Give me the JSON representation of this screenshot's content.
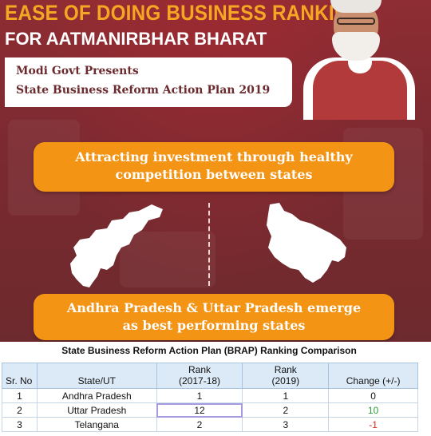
{
  "header": {
    "title_line1": "EASE OF DOING BUSINESS RANKING",
    "title_line2": "FOR AATMANIRBHAR BHARAT",
    "subtitle_line1": "Modi Govt Presents",
    "subtitle_line2": "State Business Reform Action Plan 2019"
  },
  "banners": {
    "top_line1": "Attracting investment through healthy",
    "top_line2": "competition between states",
    "bottom_line1": "Andhra Pradesh & Uttar Pradesh emerge",
    "bottom_line2": "as best performing states"
  },
  "maps": [
    {
      "icon": "andhra-pradesh-map-icon"
    },
    {
      "icon": "uttar-pradesh-map-icon"
    }
  ],
  "colors": {
    "accent_orange": "#f39415",
    "title_orange": "#f5a623",
    "background_maroon": "#7a2a30",
    "positive": "#2e9a3a",
    "negative": "#d9261c"
  },
  "table": {
    "title": "State Business Reform Action Plan (BRAP) Ranking Comparison",
    "headers": {
      "sr": "Sr. No",
      "state": "State/UT",
      "rank1_line1": "Rank",
      "rank1_line2": "(2017-18)",
      "rank2_line1": "Rank",
      "rank2_line2": "(2019)",
      "change": "Change (+/-)"
    },
    "rows": [
      {
        "sr": "1",
        "state": "Andhra Pradesh",
        "rank_2017_18": "1",
        "rank_2019": "1",
        "change": "0"
      },
      {
        "sr": "2",
        "state": "Uttar Pradesh",
        "rank_2017_18": "12",
        "rank_2019": "2",
        "change": "10"
      },
      {
        "sr": "3",
        "state": "Telangana",
        "rank_2017_18": "2",
        "rank_2019": "3",
        "change": "-1"
      }
    ]
  }
}
